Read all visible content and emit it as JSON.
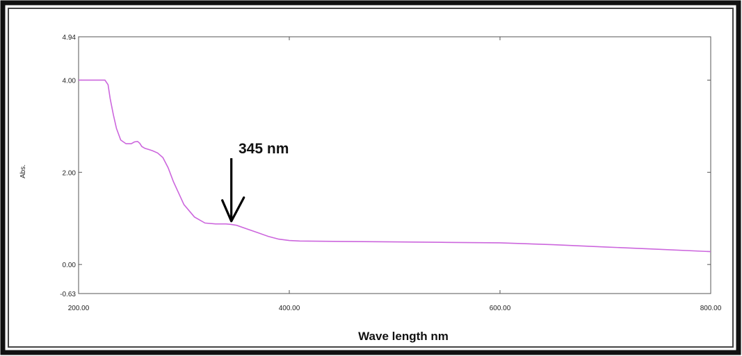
{
  "chart_data": {
    "type": "line",
    "xlabel": "Wave length nm",
    "ylabel": "Abs.",
    "xlim": [
      200,
      800
    ],
    "ylim": [
      -0.63,
      4.94
    ],
    "x_ticks": [
      "200.00",
      "400.00",
      "600.00",
      "800.00"
    ],
    "y_ticks": [
      "-0.63",
      "0.00",
      "2.00",
      "4.00",
      "4.94"
    ],
    "grid": false,
    "series": [
      {
        "color": "#cc66dd",
        "x": [
          200,
          210,
          220,
          225,
          228,
          230,
          233,
          236,
          240,
          245,
          250,
          253,
          256,
          258,
          260,
          263,
          266,
          270,
          275,
          280,
          285,
          290,
          295,
          300,
          310,
          320,
          330,
          340,
          345,
          350,
          360,
          370,
          380,
          390,
          400,
          410,
          450,
          500,
          550,
          600,
          650,
          700,
          750,
          800
        ],
        "y": [
          4.0,
          4.0,
          4.0,
          4.0,
          3.9,
          3.6,
          3.25,
          2.95,
          2.7,
          2.62,
          2.62,
          2.66,
          2.67,
          2.63,
          2.56,
          2.52,
          2.5,
          2.47,
          2.42,
          2.32,
          2.1,
          1.8,
          1.55,
          1.3,
          1.03,
          0.9,
          0.88,
          0.88,
          0.87,
          0.85,
          0.77,
          0.69,
          0.61,
          0.55,
          0.52,
          0.51,
          0.5,
          0.49,
          0.48,
          0.47,
          0.43,
          0.38,
          0.33,
          0.28
        ]
      }
    ],
    "annotations": [
      {
        "text": "345 nm",
        "x": 345,
        "arrow_to_y": 0.88
      }
    ]
  },
  "colors": {
    "frame_border": "#1a1a1a",
    "axis": "#555555",
    "line": "#cc66dd",
    "arrow": "#000000"
  }
}
